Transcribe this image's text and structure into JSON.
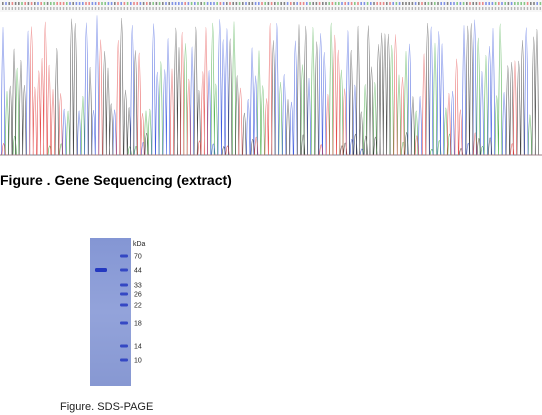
{
  "sequencing": {
    "caption": "Figure . Gene Sequencing (extract)",
    "base_colors": {
      "A": "#2ca02c",
      "C": "#1f3fd8",
      "G": "#222222",
      "T": "#e03030"
    }
  },
  "gel": {
    "caption": "Figure. SDS-PAGE",
    "unit_label": "kDa",
    "markers": [
      "70",
      "44",
      "33",
      "26",
      "22",
      "18",
      "14",
      "10"
    ],
    "sample_band_kda": "44",
    "lane_color": "#8f9fd6",
    "band_color": "#2438c0"
  }
}
